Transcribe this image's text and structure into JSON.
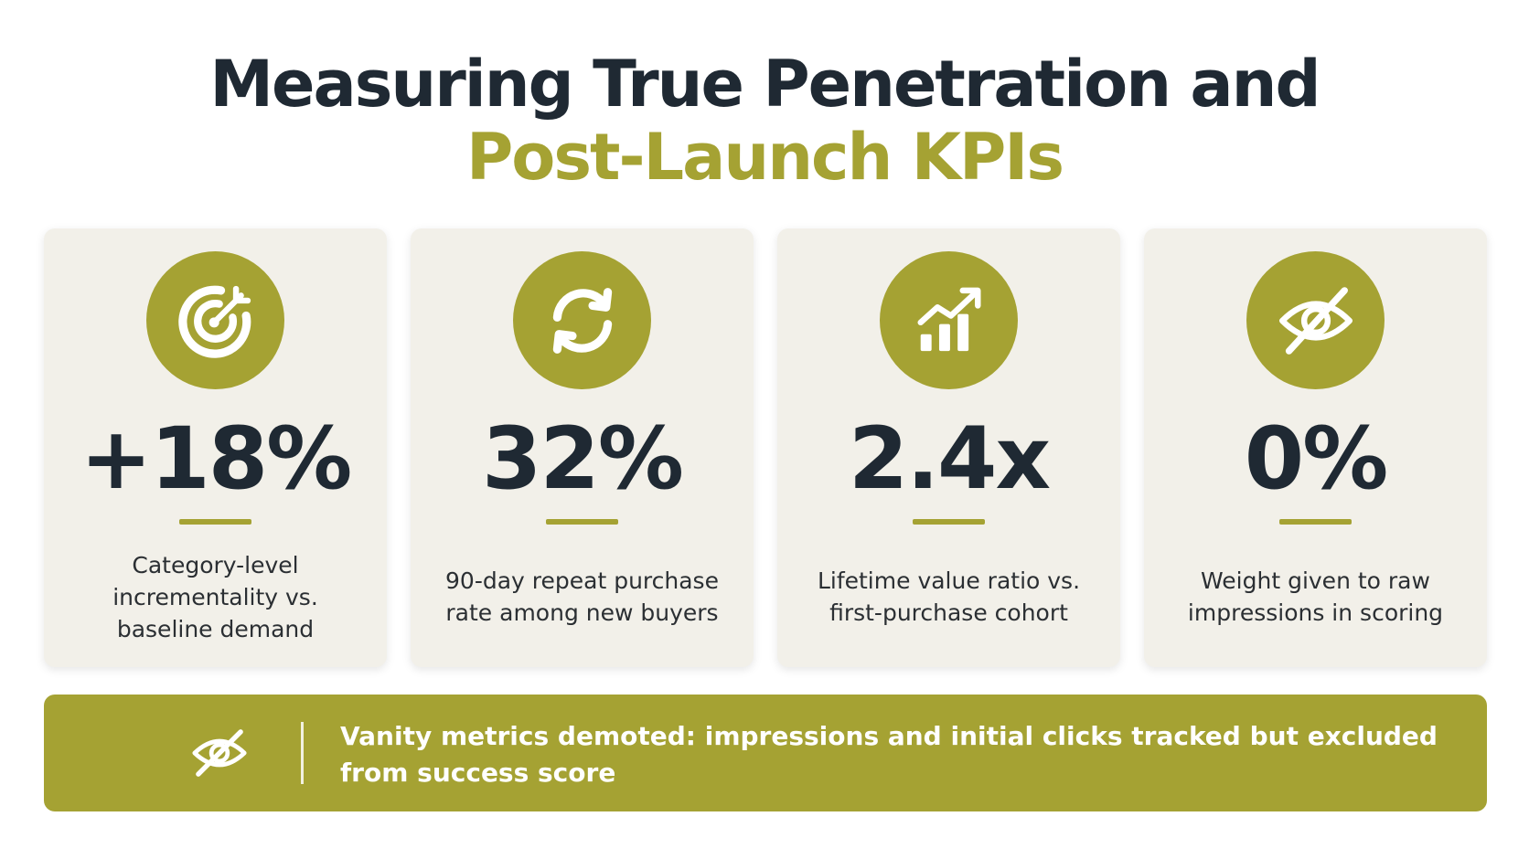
{
  "title": {
    "line1": "Measuring True Penetration and",
    "line2": "Post-Launch KPIs"
  },
  "colors": {
    "accent": "#a5a233",
    "dark_text": "#1f2933",
    "card_bg": "#f2f0e9"
  },
  "cards": [
    {
      "icon": "target-icon",
      "value": "+18%",
      "description": "Category-level incrementality vs. baseline demand"
    },
    {
      "icon": "refresh-icon",
      "value": "32%",
      "description": "90-day repeat purchase rate among new buyers"
    },
    {
      "icon": "growth-chart-icon",
      "value": "2.4x",
      "description": "Lifetime value ratio vs. first-purchase cohort"
    },
    {
      "icon": "eye-off-icon",
      "value": "0%",
      "description": "Weight given to raw impressions in scoring"
    }
  ],
  "banner": {
    "icon": "eye-off-icon",
    "text": "Vanity metrics demoted: impressions and initial clicks tracked but excluded from success score"
  }
}
